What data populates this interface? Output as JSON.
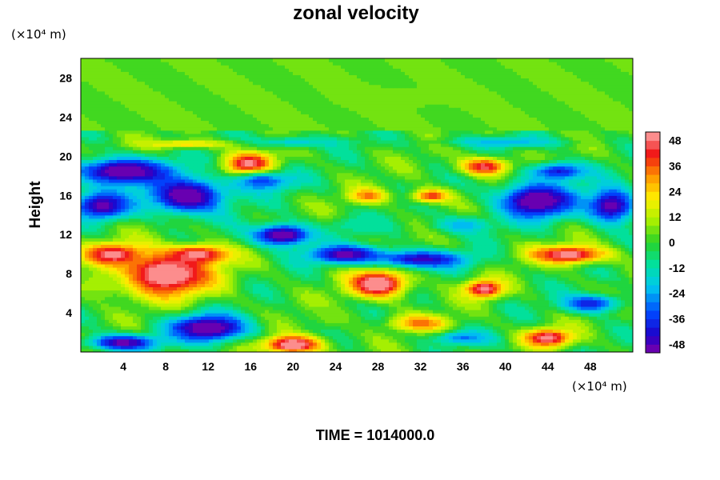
{
  "chart_data": {
    "type": "heatmap",
    "title": "zonal velocity",
    "ylabel": "Height",
    "xlabel": "",
    "x_unit": "(×10⁴ m)",
    "y_unit": "(×10⁴ m)",
    "footer": "TIME = 1014000.0",
    "xlim": [
      0,
      52
    ],
    "ylim": [
      0,
      30
    ],
    "xticks": [
      4,
      8,
      12,
      16,
      20,
      24,
      28,
      32,
      36,
      40,
      44,
      48
    ],
    "yticks": [
      4,
      8,
      12,
      16,
      20,
      24,
      28
    ],
    "colorbar": {
      "range": [
        -52,
        52
      ],
      "levels": 26,
      "ticks": [
        48,
        36,
        24,
        12,
        0,
        -12,
        -24,
        -36,
        -48
      ]
    },
    "grid": false,
    "regions": [
      {
        "x": 4,
        "y": 18.5,
        "rx": 5.0,
        "ry": 1.5,
        "value": -50
      },
      {
        "x": 10,
        "y": 16.0,
        "rx": 4.0,
        "ry": 2.0,
        "value": -50
      },
      {
        "x": 2,
        "y": 15.0,
        "rx": 3.0,
        "ry": 1.5,
        "value": -45
      },
      {
        "x": 16,
        "y": 19.0,
        "rx": 2.5,
        "ry": 1.5,
        "value": 50
      },
      {
        "x": 17,
        "y": 17.5,
        "rx": 3.5,
        "ry": 1.2,
        "value": -30
      },
      {
        "x": 8,
        "y": 8.0,
        "rx": 5.0,
        "ry": 2.5,
        "value": 50
      },
      {
        "x": 3,
        "y": 10.0,
        "rx": 3.0,
        "ry": 1.2,
        "value": 45
      },
      {
        "x": 11,
        "y": 10.0,
        "rx": 3.0,
        "ry": 1.0,
        "value": 45
      },
      {
        "x": 2,
        "y": 7.0,
        "rx": 2.5,
        "ry": 1.5,
        "value": 10
      },
      {
        "x": 12,
        "y": 2.5,
        "rx": 4.0,
        "ry": 1.5,
        "value": -50
      },
      {
        "x": 4,
        "y": 1.0,
        "rx": 3.5,
        "ry": 0.9,
        "value": -45
      },
      {
        "x": 20,
        "y": 0.8,
        "rx": 3.0,
        "ry": 1.0,
        "value": 50
      },
      {
        "x": 19,
        "y": 12.0,
        "rx": 3.0,
        "ry": 1.2,
        "value": -50
      },
      {
        "x": 25,
        "y": 10.0,
        "rx": 4.0,
        "ry": 1.0,
        "value": -45
      },
      {
        "x": 32,
        "y": 9.5,
        "rx": 5.0,
        "ry": 1.0,
        "value": -40
      },
      {
        "x": 28,
        "y": 7.0,
        "rx": 3.0,
        "ry": 1.5,
        "value": 50
      },
      {
        "x": 38,
        "y": 6.5,
        "rx": 2.0,
        "ry": 1.0,
        "value": 45
      },
      {
        "x": 43,
        "y": 15.5,
        "rx": 4.0,
        "ry": 2.0,
        "value": -50
      },
      {
        "x": 50,
        "y": 15.0,
        "rx": 2.5,
        "ry": 2.0,
        "value": -45
      },
      {
        "x": 45,
        "y": 18.5,
        "rx": 3.0,
        "ry": 1.0,
        "value": -35
      },
      {
        "x": 46,
        "y": 10.0,
        "rx": 4.0,
        "ry": 1.0,
        "value": 45
      },
      {
        "x": 38,
        "y": 19.0,
        "rx": 2.5,
        "ry": 1.0,
        "value": 40
      },
      {
        "x": 33,
        "y": 16.0,
        "rx": 2.0,
        "ry": 0.8,
        "value": 35
      },
      {
        "x": 27,
        "y": 16.0,
        "rx": 2.0,
        "ry": 0.8,
        "value": 30
      },
      {
        "x": 44,
        "y": 1.5,
        "rx": 2.5,
        "ry": 1.0,
        "value": 45
      },
      {
        "x": 36,
        "y": 1.5,
        "rx": 3.0,
        "ry": 0.8,
        "value": -25
      },
      {
        "x": 32,
        "y": 3.0,
        "rx": 3.0,
        "ry": 0.9,
        "value": 30
      },
      {
        "x": 48,
        "y": 5.0,
        "rx": 3.0,
        "ry": 1.0,
        "value": -35
      },
      {
        "x": 24,
        "y": 3.5,
        "rx": 2.5,
        "ry": 1.2,
        "value": 5
      },
      {
        "x": 26,
        "y": 13.0,
        "rx": 3.0,
        "ry": 1.0,
        "value": -10
      },
      {
        "x": 36,
        "y": 13.0,
        "rx": 3.0,
        "ry": 1.0,
        "value": -20
      },
      {
        "x": 20,
        "y": 21.5,
        "rx": 6.0,
        "ry": 0.6,
        "value": -15
      },
      {
        "x": 40,
        "y": 21.5,
        "rx": 6.0,
        "ry": 0.6,
        "value": -20
      },
      {
        "x": 10,
        "y": 21.3,
        "rx": 5.0,
        "ry": 0.5,
        "value": 20
      },
      {
        "x": 30,
        "y": 26.0,
        "rx": 8.0,
        "ry": 1.5,
        "value": 5
      }
    ]
  }
}
